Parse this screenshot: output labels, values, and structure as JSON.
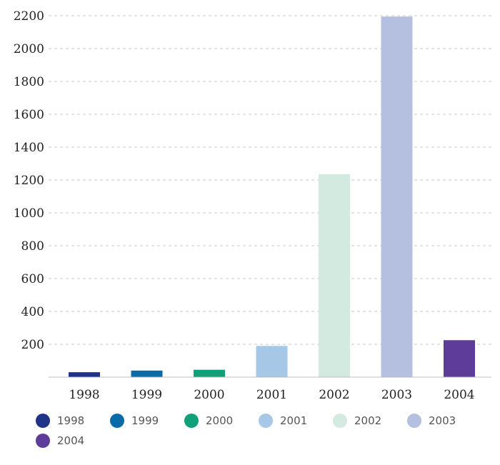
{
  "chart_data": {
    "type": "bar",
    "categories": [
      "1998",
      "1999",
      "2000",
      "2001",
      "2002",
      "2003",
      "2004"
    ],
    "values": [
      30,
      40,
      45,
      190,
      1235,
      2195,
      225
    ],
    "colors": [
      "#1f3389",
      "#0b6aa8",
      "#12a07a",
      "#a7c7e7",
      "#d2eadf",
      "#b5bfdf",
      "#5e3c99"
    ],
    "ylim": [
      0,
      2200
    ],
    "yticks": [
      200,
      400,
      600,
      800,
      1000,
      1200,
      1400,
      1600,
      1800,
      2000,
      2200
    ],
    "grid": true,
    "legend": {
      "placement": "bottom",
      "entries": [
        "1998",
        "1999",
        "2000",
        "2001",
        "2002",
        "2003",
        "2004"
      ]
    },
    "title": "",
    "xlabel": "",
    "ylabel": ""
  }
}
